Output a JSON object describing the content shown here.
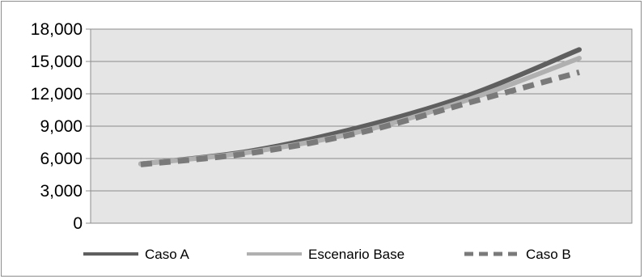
{
  "chart_data": {
    "type": "line",
    "title": "",
    "xlabel": "",
    "ylabel": "",
    "x": [
      0,
      1,
      2,
      3,
      4
    ],
    "ylim": [
      0,
      18000
    ],
    "yticks": [
      "18,000",
      "15,000",
      "12,000",
      "9,000",
      "6,000",
      "3,000",
      "0"
    ],
    "grid": true,
    "legend_position": "bottom",
    "series": [
      {
        "name": "Caso A",
        "values": [
          5500,
          6700,
          8900,
          11900,
          16100
        ],
        "color": "#5f5f5f",
        "dash": "solid"
      },
      {
        "name": "Escenario Base",
        "values": [
          5500,
          6600,
          8500,
          11500,
          15300
        ],
        "color": "#b0b0b0",
        "dash": "solid"
      },
      {
        "name": "Caso B",
        "values": [
          5450,
          6500,
          8400,
          11200,
          14000
        ],
        "color": "#7a7a7a",
        "dash": "dashed"
      }
    ]
  }
}
